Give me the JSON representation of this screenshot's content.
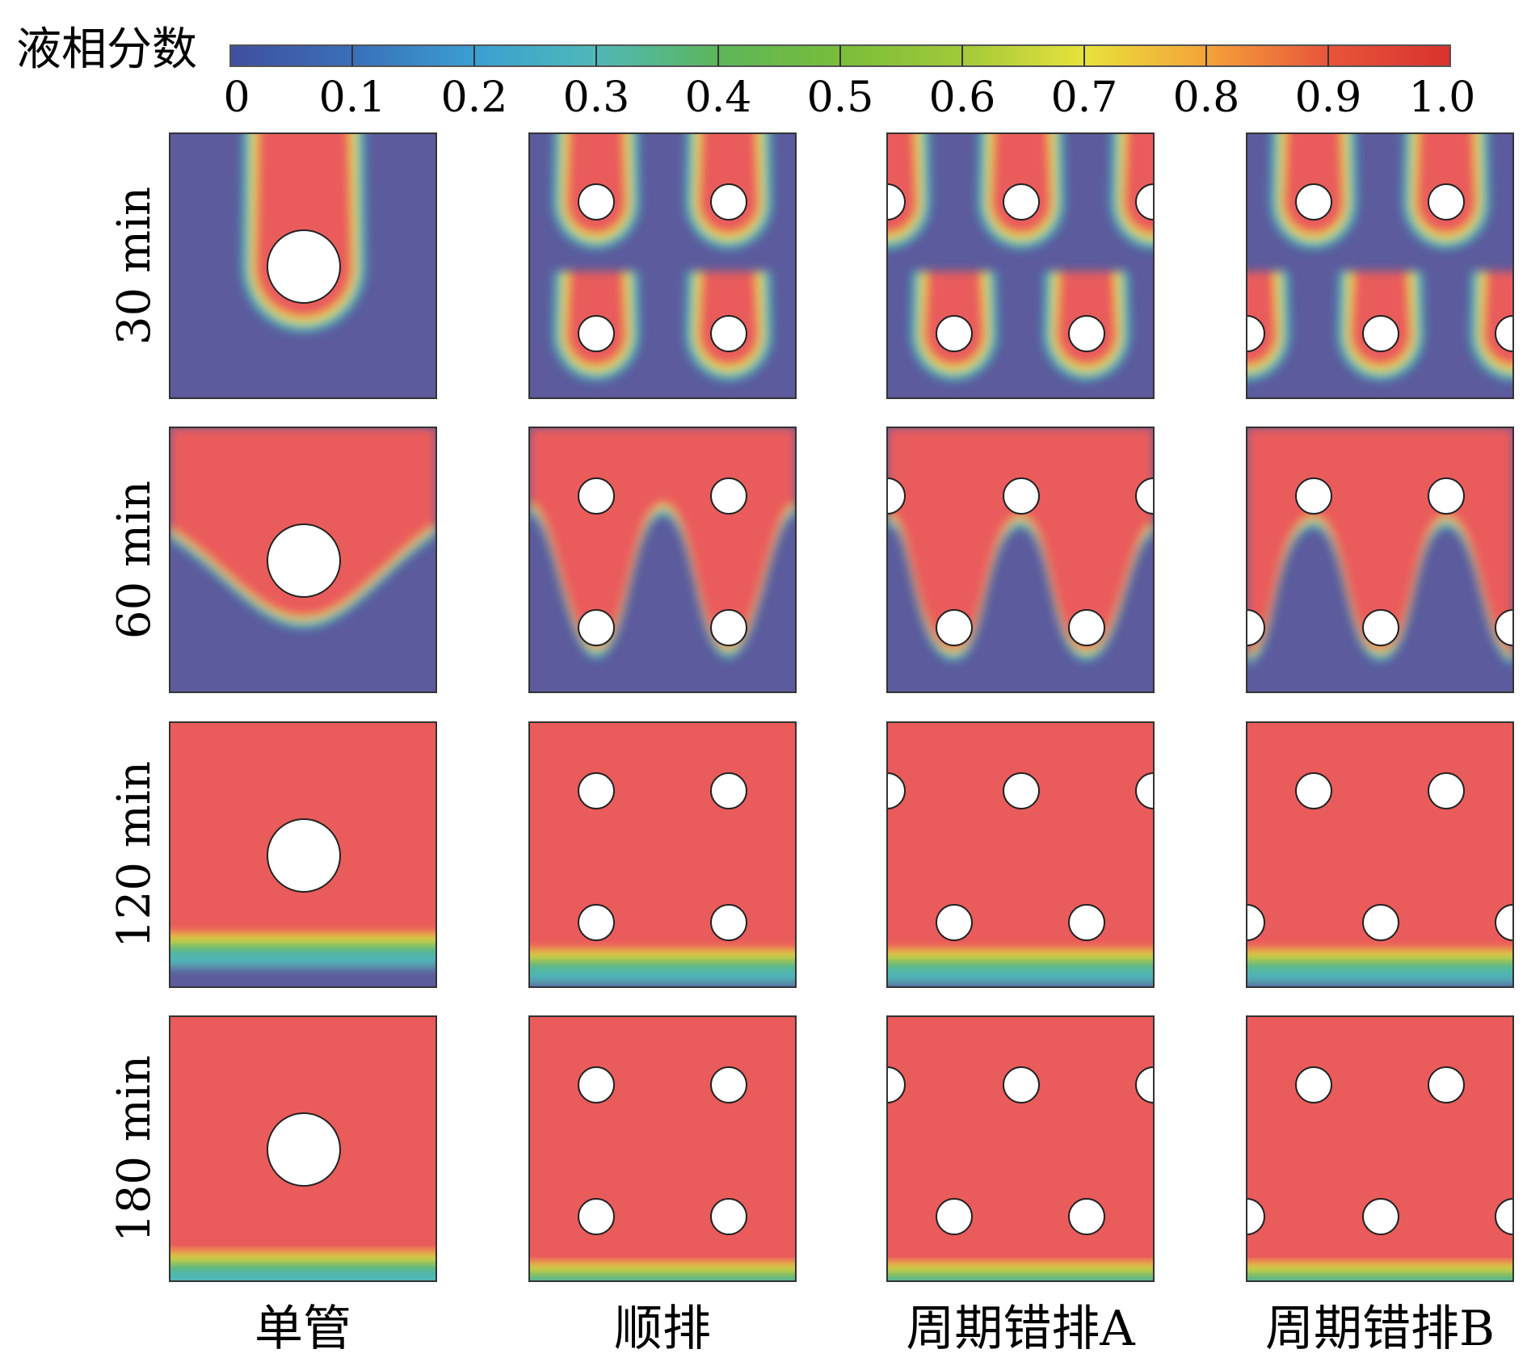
{
  "colorbar": {
    "title": "液相分数",
    "ticks": [
      "0",
      "0.1",
      "0.2",
      "0.3",
      "0.4",
      "0.5",
      "0.6",
      "0.7",
      "0.8",
      "0.9",
      "1.0"
    ],
    "colors": [
      "#3f4e9e",
      "#3a6fb8",
      "#3a9fd2",
      "#4fb8b8",
      "#5cb65a",
      "#79bd3a",
      "#a2c93a",
      "#e8e23a",
      "#f4a33a",
      "#e8553a",
      "#d8322f"
    ]
  },
  "rows": [
    {
      "label": "30 min"
    },
    {
      "label": "60 min"
    },
    {
      "label": "120 min"
    },
    {
      "label": "180 min"
    }
  ],
  "columns": [
    {
      "label": "单管"
    },
    {
      "label": "顺排"
    },
    {
      "label": "周期错排A"
    },
    {
      "label": "周期错排B"
    }
  ],
  "colors": {
    "liquid": "#ea5b5b",
    "solid": "#5b5b9d",
    "tube": "#ffffff"
  }
}
